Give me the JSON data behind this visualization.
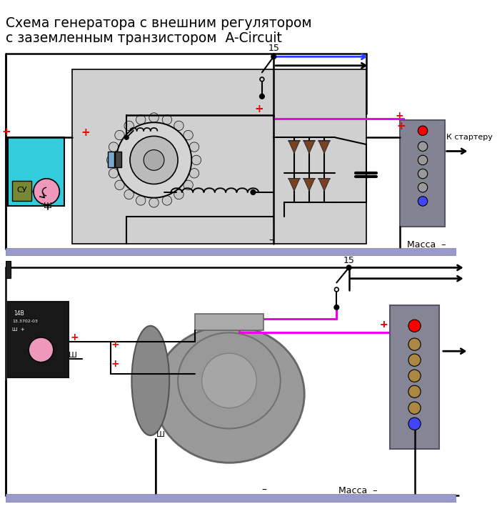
{
  "title_line1": "Схема генератора с внешним регулятором",
  "title_line2": "с заземленным транзистором  A-Circuit",
  "bg_color": "#ffffff",
  "gray_panel": "#d0d0d0",
  "cyan_box": "#33ccdd",
  "pink_circle": "#ee99bb",
  "magenta_line": "#ee00ee",
  "blue_arrow": "#2244ff",
  "black": "#000000",
  "red_plus": "#ee0000",
  "diode_color": "#7a4020",
  "ground_bar_color": "#9999cc",
  "batt_block_color": "#888899",
  "reg_black": "#111111",
  "screw_color": "#aa8844",
  "label_massa": "Масса  –",
  "label_15": "15",
  "label_k_starter": "К стартеру",
  "label_sh": "Ш",
  "font_title": 13.5
}
